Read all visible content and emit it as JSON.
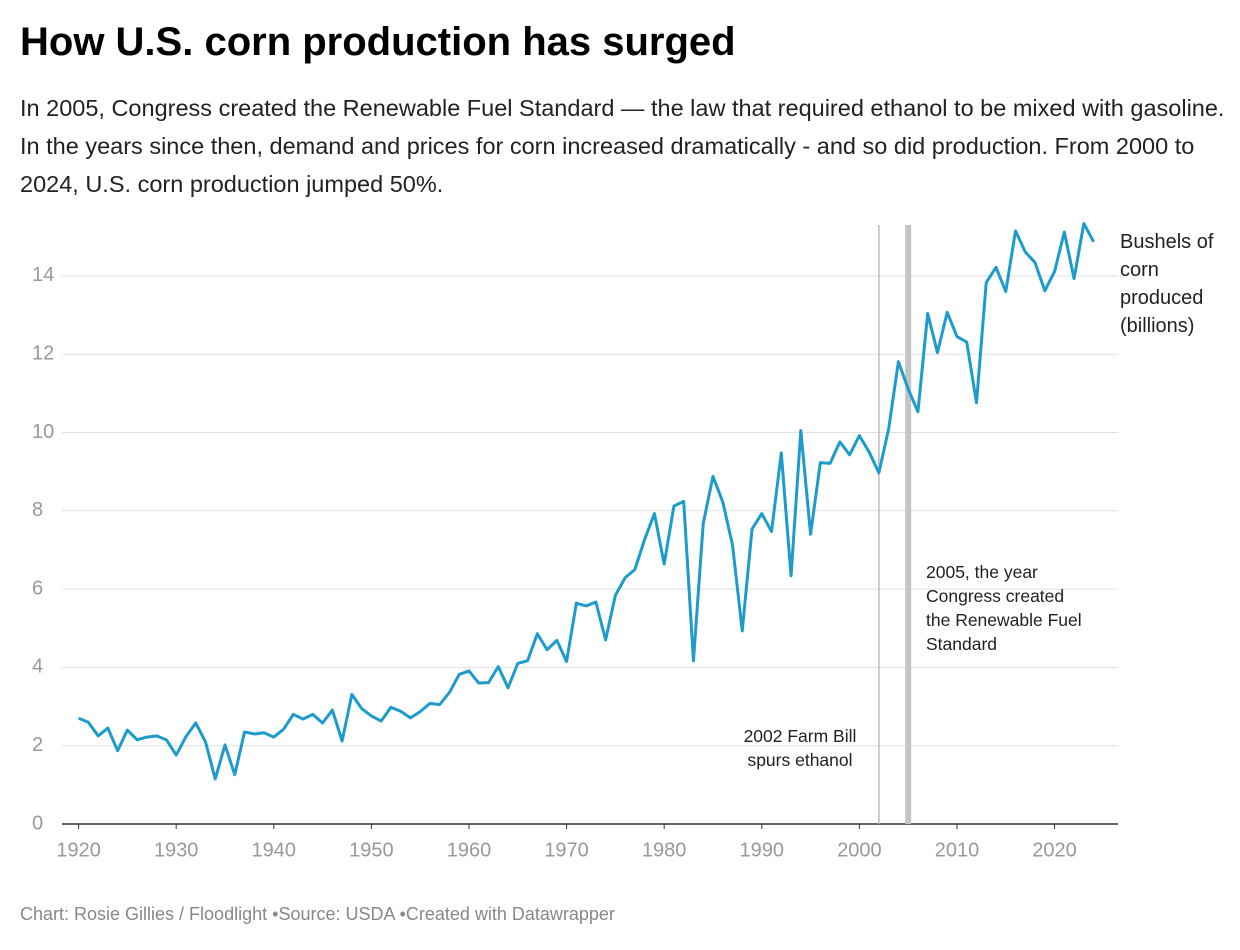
{
  "chart_data": {
    "type": "line",
    "title": "How U.S. corn production has surged",
    "subtitle": "In 2005, Congress created the Renewable Fuel Standard — the law that required ethanol to be mixed with gasoline. In the years since then, demand and prices for corn increased dramatically - and so did production. From 2000 to 2024, U.S. corn production jumped 50%.",
    "footer": [
      "Chart: Rosie Gillies / Floodlight",
      "Source: USDA",
      "Created with Datawrapper"
    ],
    "x": [
      1920,
      1921,
      1922,
      1923,
      1924,
      1925,
      1926,
      1927,
      1928,
      1929,
      1930,
      1931,
      1932,
      1933,
      1934,
      1935,
      1936,
      1937,
      1938,
      1939,
      1940,
      1941,
      1942,
      1943,
      1944,
      1945,
      1946,
      1947,
      1948,
      1949,
      1950,
      1951,
      1952,
      1953,
      1954,
      1955,
      1956,
      1957,
      1958,
      1959,
      1960,
      1961,
      1962,
      1963,
      1964,
      1965,
      1966,
      1967,
      1968,
      1969,
      1970,
      1971,
      1972,
      1973,
      1974,
      1975,
      1976,
      1977,
      1978,
      1979,
      1980,
      1981,
      1982,
      1983,
      1984,
      1985,
      1986,
      1987,
      1988,
      1989,
      1990,
      1991,
      1992,
      1993,
      1994,
      1995,
      1996,
      1997,
      1998,
      1999,
      2000,
      2001,
      2002,
      2003,
      2004,
      2005,
      2006,
      2007,
      2008,
      2009,
      2010,
      2011,
      2012,
      2013,
      2014,
      2015,
      2016,
      2017,
      2018,
      2019,
      2020,
      2021,
      2022,
      2023,
      2024
    ],
    "series": [
      {
        "name": "Bushels of corn produced (billions)",
        "color": "#1d9ccc",
        "values": [
          2.7,
          2.6,
          2.25,
          2.45,
          1.87,
          2.4,
          2.15,
          2.22,
          2.25,
          2.15,
          1.76,
          2.23,
          2.58,
          2.1,
          1.15,
          2.02,
          1.26,
          2.35,
          2.3,
          2.33,
          2.22,
          2.42,
          2.8,
          2.68,
          2.8,
          2.58,
          2.91,
          2.12,
          3.31,
          2.95,
          2.76,
          2.63,
          2.98,
          2.88,
          2.71,
          2.87,
          3.08,
          3.05,
          3.36,
          3.82,
          3.91,
          3.6,
          3.61,
          4.02,
          3.48,
          4.1,
          4.17,
          4.86,
          4.45,
          4.69,
          4.15,
          5.64,
          5.57,
          5.67,
          4.7,
          5.84,
          6.29,
          6.5,
          7.27,
          7.93,
          6.64,
          8.12,
          8.24,
          4.17,
          7.67,
          8.88,
          8.23,
          7.13,
          4.93,
          7.53,
          7.93,
          7.47,
          9.48,
          6.34,
          10.05,
          7.4,
          9.23,
          9.21,
          9.76,
          9.43,
          9.92,
          9.5,
          8.97,
          10.09,
          11.81,
          11.11,
          10.53,
          13.04,
          12.04,
          13.07,
          12.45,
          12.31,
          10.76,
          13.83,
          14.22,
          13.6,
          15.15,
          14.61,
          14.34,
          13.62,
          14.11,
          15.12,
          13.93,
          15.34,
          14.87
        ]
      }
    ],
    "xlim": [
      1918.3,
      2026.5
    ],
    "xticks": [
      1920,
      1930,
      1940,
      1950,
      1960,
      1970,
      1980,
      1990,
      2000,
      2010,
      2020
    ],
    "ylim": [
      0,
      15.3
    ],
    "yticks": [
      0,
      2,
      4,
      6,
      8,
      10,
      12,
      14
    ],
    "grid": true,
    "annotations": [
      {
        "x": 2002,
        "text": "2002 Farm Bill spurs ethanol"
      },
      {
        "x": 2005,
        "text": "2005, the year Congress created the Renewable Fuel Standard"
      }
    ]
  }
}
